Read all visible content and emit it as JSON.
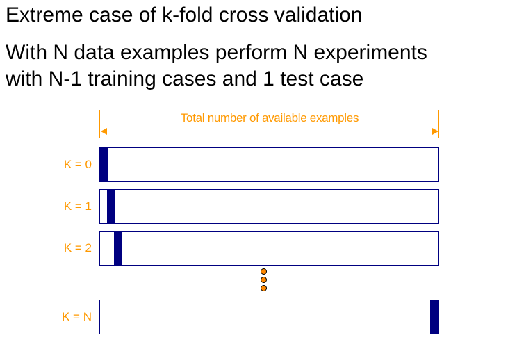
{
  "text": {
    "line1": "Extreme case of k-fold cross validation",
    "line2": "With N data examples perform N experiments",
    "line3": "with N-1 training cases and 1 test case"
  },
  "diagram": {
    "span_label": "Total number of available examples",
    "folds": [
      {
        "label": "K = 0"
      },
      {
        "label": "K = 1"
      },
      {
        "label": "K = 2"
      },
      {
        "label": "K = N"
      }
    ]
  },
  "colors": {
    "accent": "#ff9900",
    "bar_border": "#000080",
    "test_block": "#000080",
    "dot": "#ff8800"
  }
}
